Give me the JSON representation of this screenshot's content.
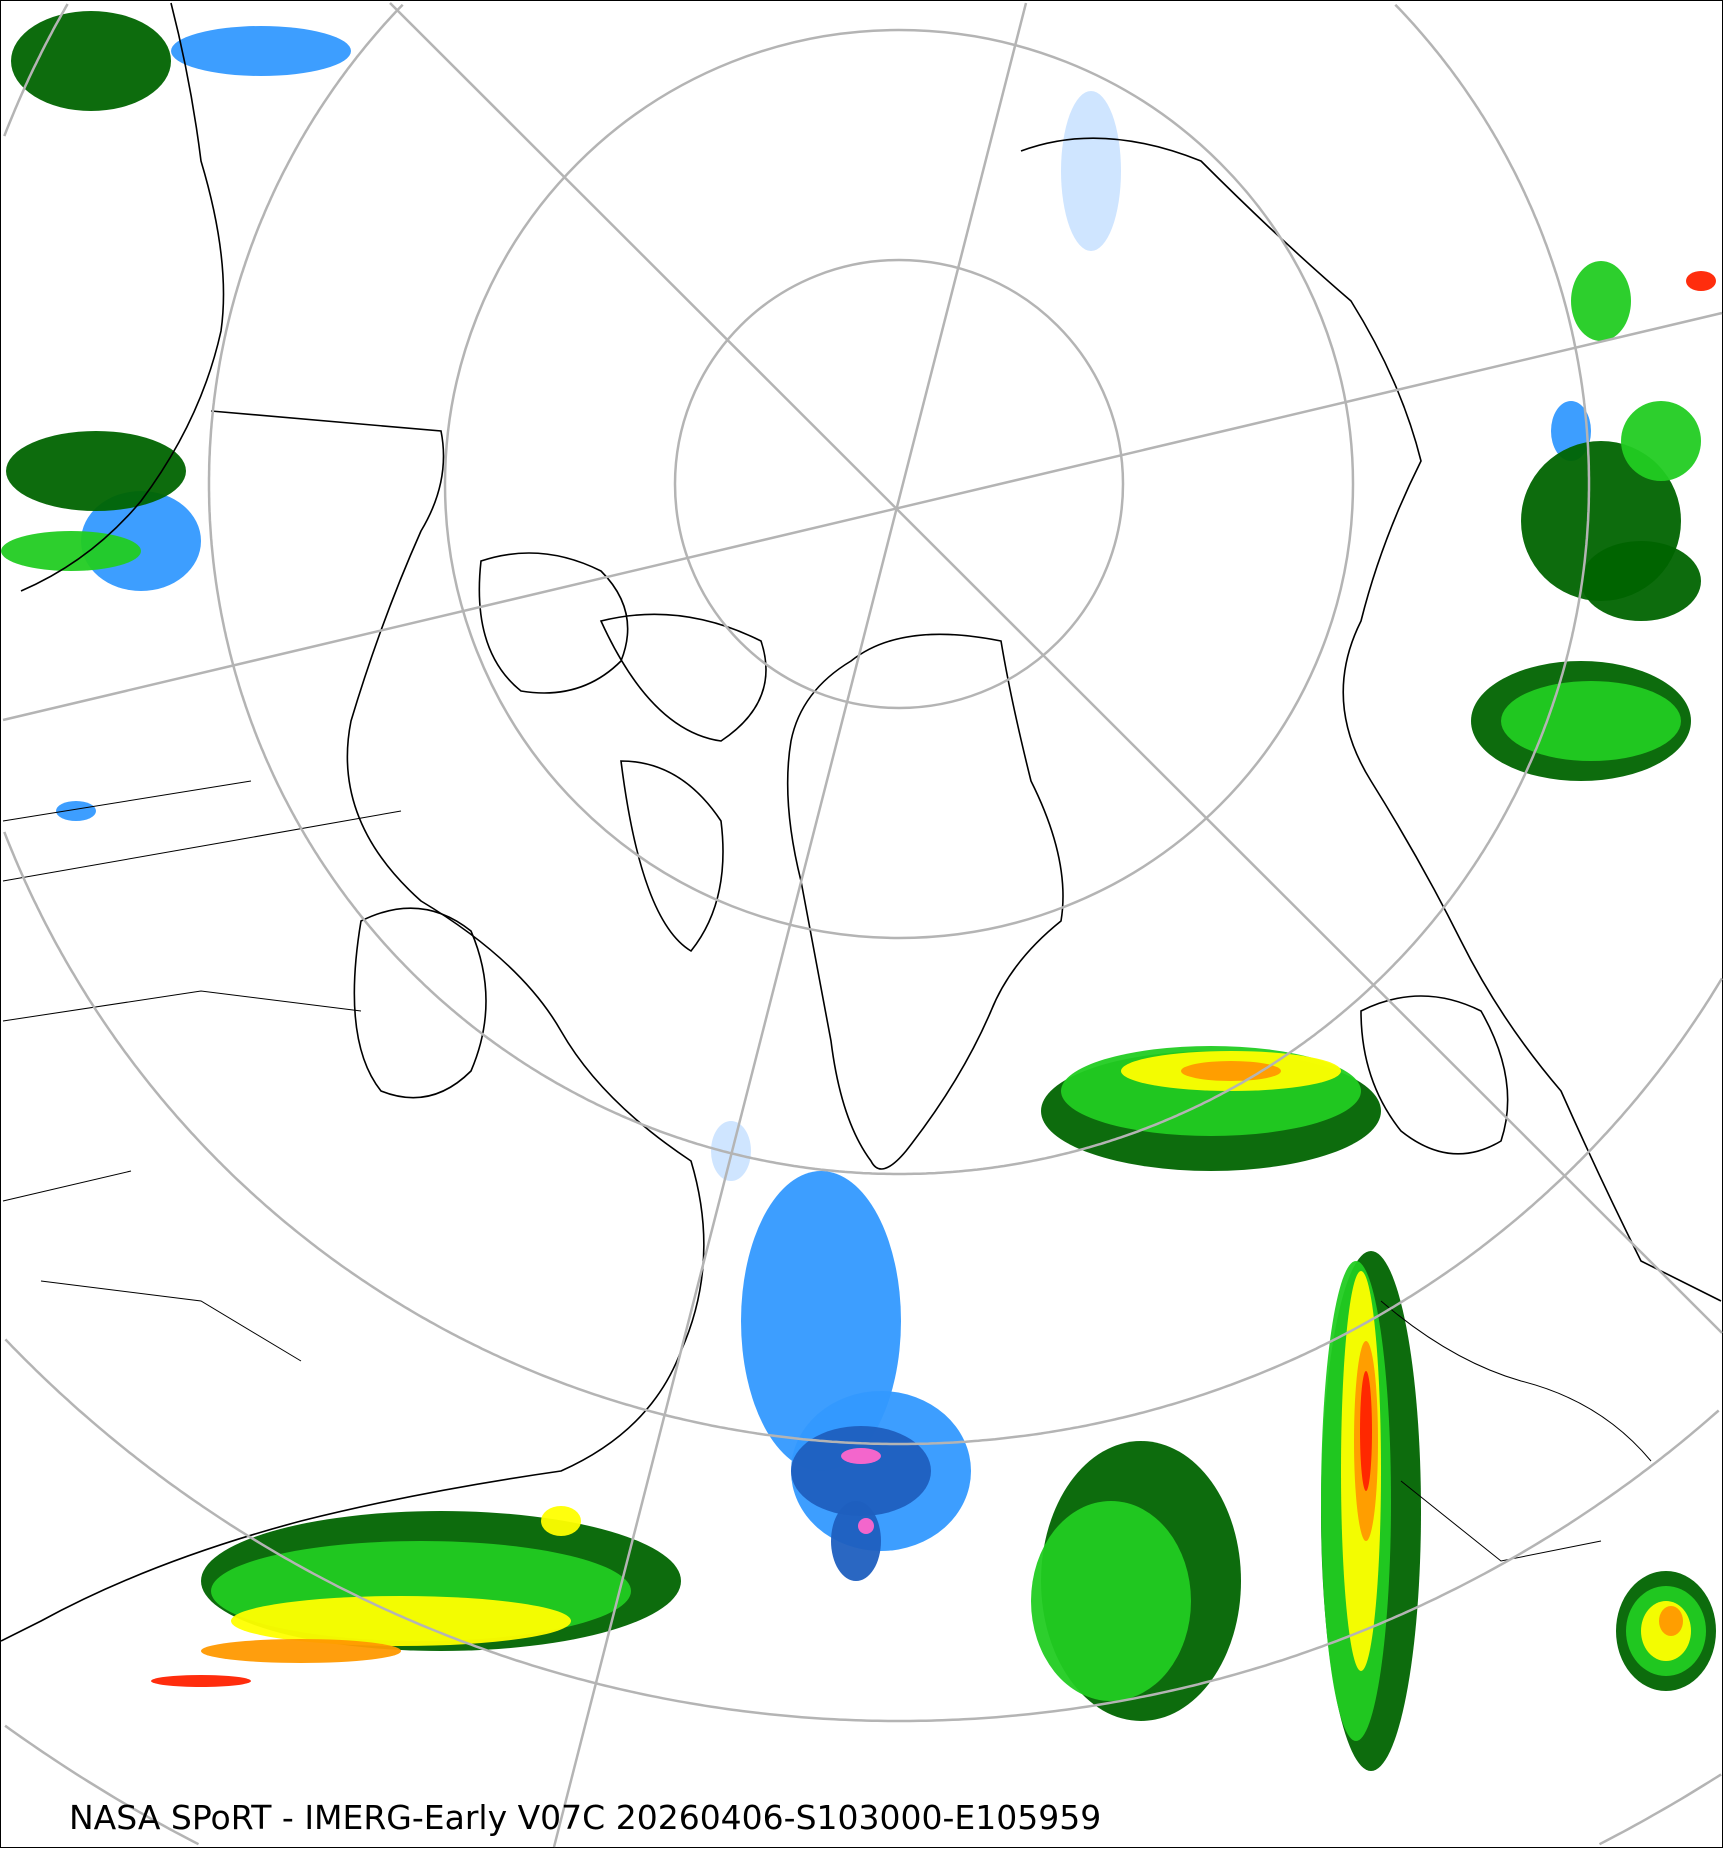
{
  "map": {
    "projection": "north polar stereographic",
    "caption": "NASA SPoRT - IMERG-Early V07C 20260406-S103000-E105959",
    "colors": {
      "graticule": "#b4b4b4",
      "coastline": "#000000",
      "precip_light_blue": "#cce4ff",
      "precip_blue": "#3399ff",
      "precip_dark_blue": "#1f5fbf",
      "precip_pink": "#ff66cc",
      "precip_dark_green": "#006400",
      "precip_green": "#22cc22",
      "precip_light_green": "#99ff33",
      "precip_yellow": "#ffff00",
      "precip_orange": "#ff9900",
      "precip_red": "#ff2200"
    }
  }
}
